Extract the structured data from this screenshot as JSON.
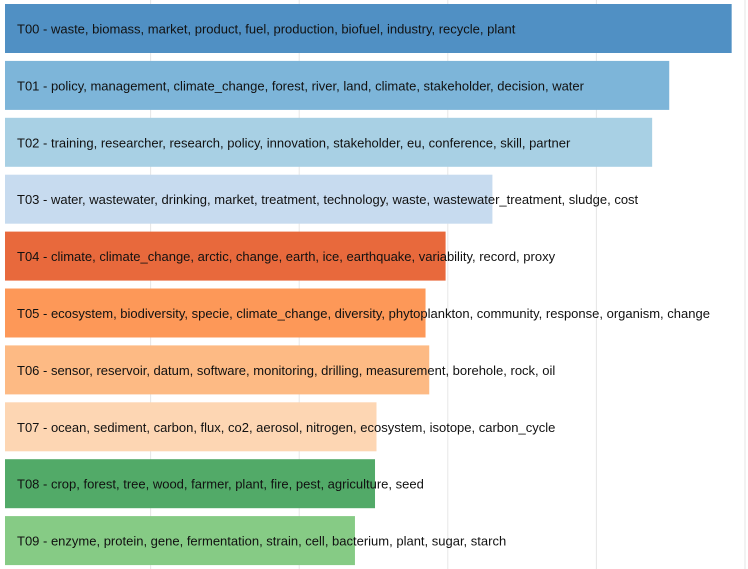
{
  "chart_data": {
    "type": "bar",
    "orientation": "horizontal",
    "title": "",
    "xlabel": "",
    "ylabel": "",
    "xlim": [
      0,
      0.1
    ],
    "grid": true,
    "legend": "none",
    "categories": [
      "T00",
      "T01",
      "T02",
      "T03",
      "T04",
      "T05",
      "T06",
      "T07",
      "T08",
      "T09"
    ],
    "labels": [
      "T00 - waste, biomass, market, product, fuel, production, biofuel, industry, recycle, plant",
      "T01 - policy, management, climate_change, forest, river, land, climate, stakeholder, decision, water",
      "T02 - training, researcher, research, policy, innovation, stakeholder, eu, conference, skill, partner",
      "T03 - water, wastewater, drinking, market, treatment, technology, waste, wastewater_treatment, sludge, cost",
      "T04 - climate, climate_change, arctic, change, earth, ice, earthquake, variability, record, proxy",
      "T05 - ecosystem, biodiversity, specie, climate_change, diversity, phytoplankton, community, response, organism, change",
      "T06 - sensor, reservoir, datum, software, monitoring, drilling, measurement, borehole, rock, oil",
      "T07 - ocean, sediment, carbon, flux, co2, aerosol, nitrogen, ecosystem, isotope, carbon_cycle",
      "T08 - crop, forest, tree, wood, farmer, plant, fire, pest, agriculture, seed",
      "T09 - enzyme, protein, gene, fermentation, strain, cell, bacterium, plant, sugar, starch"
    ],
    "values": [
      0.0978,
      0.0894,
      0.0871,
      0.0656,
      0.0593,
      0.0566,
      0.0571,
      0.05,
      0.0498,
      0.0471
    ],
    "colors": [
      "#5090c4",
      "#7db5d9",
      "#a8d0e4",
      "#c7dbef",
      "#e8693c",
      "#fd9858",
      "#fdba84",
      "#fdd6b3",
      "#52aa68",
      "#86cb85"
    ]
  }
}
